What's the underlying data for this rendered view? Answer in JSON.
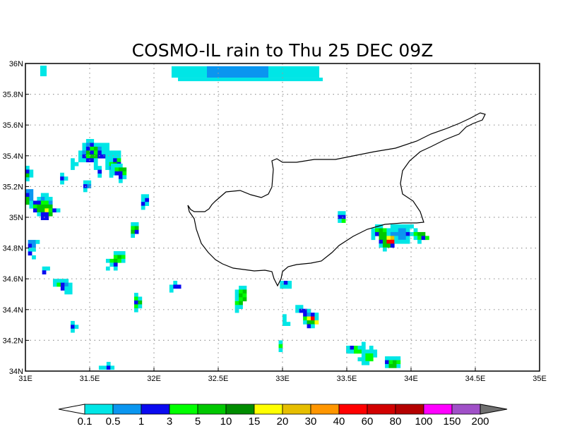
{
  "title": "COSMO-IL rain to Thu 25 DEC 09Z",
  "map": {
    "lon_range": [
      31,
      35
    ],
    "lat_range": [
      34,
      36
    ],
    "lon_ticks": [
      {
        "v": 31,
        "label": "31E"
      },
      {
        "v": 31.5,
        "label": "31.5E"
      },
      {
        "v": 32,
        "label": "32E"
      },
      {
        "v": 32.5,
        "label": "32.5E"
      },
      {
        "v": 33,
        "label": "33E"
      },
      {
        "v": 33.5,
        "label": "33.5E"
      },
      {
        "v": 34,
        "label": "34E"
      },
      {
        "v": 34.5,
        "label": "34.5E"
      },
      {
        "v": 35,
        "label": "35E"
      }
    ],
    "lat_ticks": [
      {
        "v": 34,
        "label": "34N"
      },
      {
        "v": 34.2,
        "label": "34.2N"
      },
      {
        "v": 34.4,
        "label": "34.4N"
      },
      {
        "v": 34.6,
        "label": "34.6N"
      },
      {
        "v": 34.8,
        "label": "34.8N"
      },
      {
        "v": 35,
        "label": "35N"
      },
      {
        "v": 35.2,
        "label": "35.2N"
      },
      {
        "v": 35.4,
        "label": "35.4N"
      },
      {
        "v": 35.6,
        "label": "35.6N"
      },
      {
        "v": 35.8,
        "label": "35.8N"
      },
      {
        "v": 36,
        "label": "36N"
      }
    ],
    "cell_deg": [
      0.03,
      0.025
    ],
    "rain_regions": [
      [
        32.137,
        35.982,
        33.286,
        35.908,
        0
      ],
      [
        32.412,
        35.982,
        32.89,
        35.908,
        1
      ],
      [
        32.187,
        35.908,
        33.313,
        35.885,
        0
      ],
      [
        31.115,
        35.986,
        31.165,
        35.917,
        0
      ]
    ],
    "rain_clusters": [
      {
        "lon": 31.352,
        "lat": 35.509,
        "rows": [
          "....00.......",
          "...0120000...",
          "...0234100...",
          "..01423200000",
          "..02344220000",
          "0.00220..0023",
          "00....0..0342",
          "0.....00.0110",
          ".......2..01.",
          ".......0..0.."
        ]
      },
      {
        "lon": 31.0,
        "lat": 35.335,
        "rows": [
          "0.",
          "20",
          "40",
          "0."
        ]
      },
      {
        "lon": 31.0,
        "lat": 35.183,
        "rows": [
          "11......",
          "21..00..",
          "41.0100.",
          "4022331.",
          ".034444.",
          "..2446320",
          "...0224.",
          "....22.."
        ]
      },
      {
        "lon": 31.27,
        "lat": 35.29,
        "rows": [
          "0.",
          "20",
          "0."
        ]
      },
      {
        "lon": 31.45,
        "lat": 35.24,
        "rows": [
          "00",
          "21",
          "0."
        ]
      },
      {
        "lon": 31.665,
        "lat": 35.349,
        "rows": [
          "000..",
          "0344.",
          "0223.",
          "..20.",
          "..0.."
        ]
      },
      {
        "lon": 31.9,
        "lat": 35.15,
        "rows": [
          "00",
          "02",
          "20",
          "0."
        ]
      },
      {
        "lon": 31.82,
        "lat": 34.968,
        "rows": [
          "00",
          "34",
          "42",
          "0."
        ]
      },
      {
        "lon": 31.02,
        "lat": 34.853,
        "rows": [
          "110",
          "21.",
          "00.",
          "2..",
          ".0."
        ]
      },
      {
        "lon": 31.13,
        "lat": 34.68,
        "rows": [
          "00",
          "2."
        ]
      },
      {
        "lon": 31.626,
        "lat": 34.78,
        "rows": [
          "..000",
          "..343",
          "03430",
          ".02..",
          "0.0.."
        ]
      },
      {
        "lon": 31.214,
        "lat": 34.6,
        "rows": [
          "0000.",
          "03210",
          "..200",
          "...00"
        ]
      },
      {
        "lon": 31.352,
        "lat": 34.326,
        "rows": [
          "0.",
          "20",
          "0."
        ]
      },
      {
        "lon": 31.846,
        "lat": 34.509,
        "rows": [
          "0.",
          "30",
          "24",
          "30",
          "0."
        ]
      },
      {
        "lon": 32.12,
        "lat": 34.587,
        "rows": [
          ".0.",
          "022",
          "0.."
        ]
      },
      {
        "lon": 31.571,
        "lat": 34.06,
        "rows": [
          "..0.",
          "0020"
        ]
      },
      {
        "lon": 32.63,
        "lat": 34.555,
        "rows": [
          ".00",
          "034",
          "043",
          "034",
          "34.",
          "00.",
          "0.."
        ]
      },
      {
        "lon": 32.98,
        "lat": 34.587,
        "rows": [
          "020",
          "000"
        ]
      },
      {
        "lon": 33.0,
        "lat": 34.37,
        "rows": [
          "0.",
          "0.",
          "00"
        ]
      },
      {
        "lon": 33.1,
        "lat": 34.43,
        "rows": [
          "00.....",
          "0220...",
          "..2120.",
          "..3690.",
          "..0446.",
          "...20.."
        ]
      },
      {
        "lon": 32.97,
        "lat": 34.2,
        "rows": [
          "0",
          "3",
          "0"
        ]
      },
      {
        "lon": 33.43,
        "lat": 35.04,
        "rows": [
          "00",
          "22",
          "03"
        ]
      },
      {
        "lon": 33.69,
        "lat": 34.954,
        "rows": [
          ".00..000000...",
          "0343000110.0..",
          "02440111120344",
          "0.44670110.0323",
          "..24990000..0.",
          "..0442........",
          "...0.........."
        ]
      },
      {
        "lon": 33.495,
        "lat": 34.19,
        "rows": [
          "....0....",
          "02300.0..",
          "00330000.",
          "....0330.",
          "...0033..",
          "....00..."
        ]
      },
      {
        "lon": 33.797,
        "lat": 34.096,
        "rows": [
          "0000",
          "2343",
          "0440"
        ]
      }
    ]
  },
  "colorbar": {
    "colors": [
      "#00e6e6",
      "#0a96f0",
      "#0a0af0",
      "#00ff00",
      "#00c800",
      "#008c00",
      "#ffff00",
      "#e6be00",
      "#ff9600",
      "#ff0000",
      "#d20000",
      "#b40000",
      "#ff00ff",
      "#a050c8"
    ],
    "below_color": "#ffffff",
    "above_color": "#707070",
    "labels": [
      "0.1",
      "0.5",
      "1",
      "3",
      "5",
      "10",
      "15",
      "20",
      "30",
      "40",
      "60",
      "80",
      "100",
      "150",
      "200"
    ]
  },
  "coast_color": "#000000"
}
